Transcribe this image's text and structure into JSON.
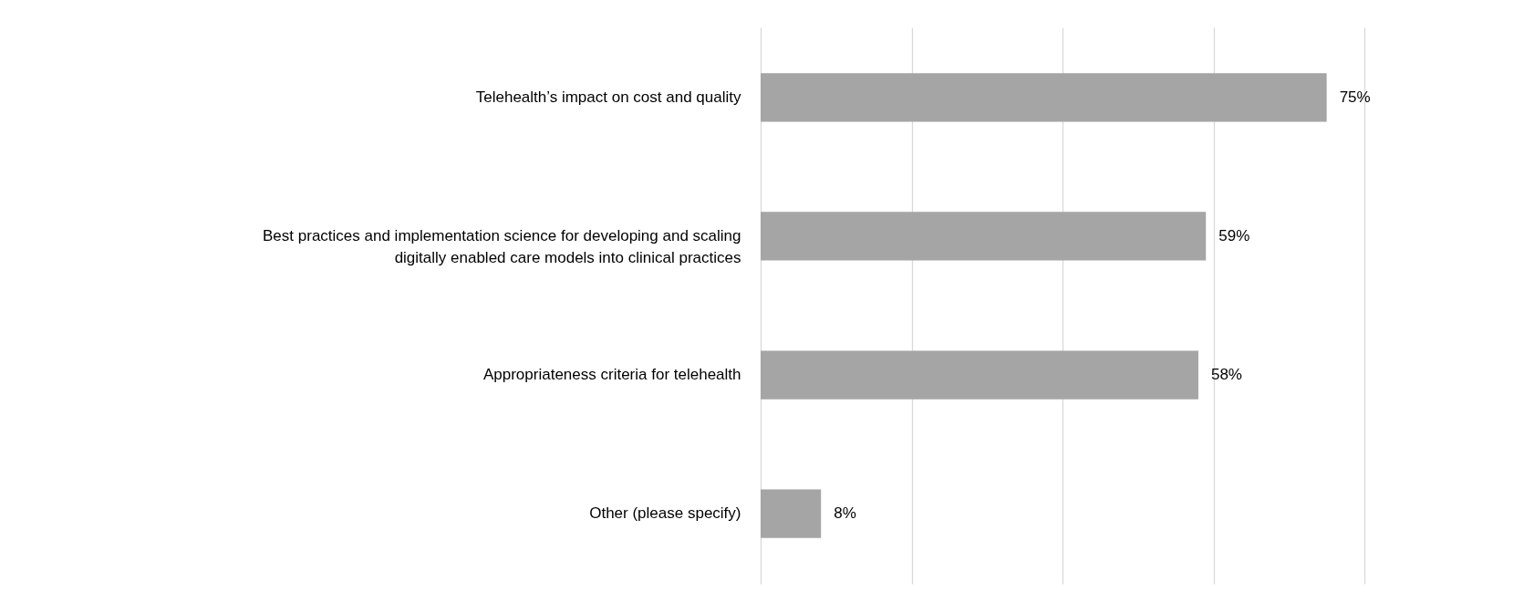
{
  "chart_data": {
    "type": "bar",
    "orientation": "horizontal",
    "categories": [
      "Telehealth’s impact on cost and quality",
      "Best practices and implementation science for developing and scaling digitally enabled care models into clinical practices",
      "Appropriateness criteria for telehealth",
      "Other (please specify)"
    ],
    "values": [
      75,
      59,
      58,
      8
    ],
    "value_labels": [
      "75%",
      "59%",
      "58%",
      "8%"
    ],
    "color": "#a5a5a5",
    "xticks": [
      {
        "value": 0,
        "label": null
      },
      {
        "value": 20,
        "label": null
      },
      {
        "value": 40,
        "label": null
      },
      {
        "value": 60,
        "label": null
      },
      {
        "value": 80,
        "label": null
      }
    ],
    "grid": "x",
    "tick_labels": "y"
  }
}
